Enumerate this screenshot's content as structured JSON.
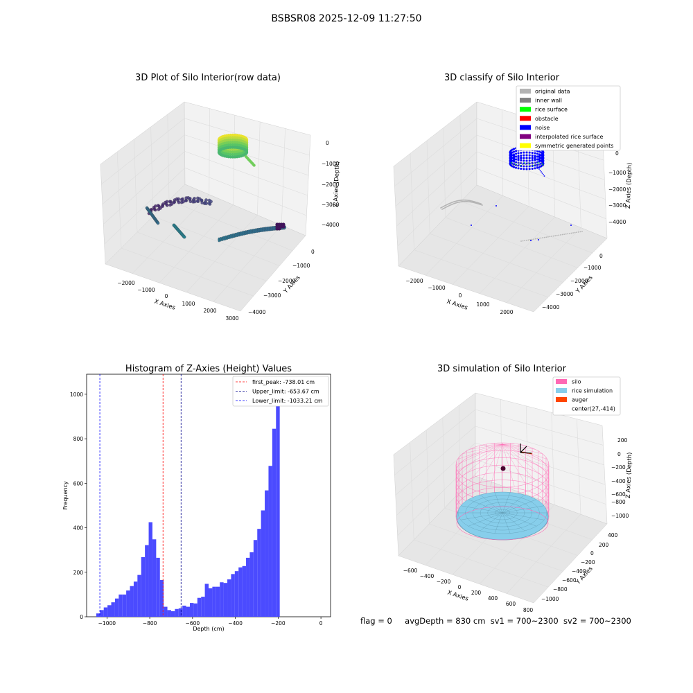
{
  "figure": {
    "suptitle": "BSBSR08 2025-12-09 11:27:50",
    "footer": {
      "flag": "flag = 0",
      "avg_depth": "avgDepth = 830 cm",
      "sv1": "sv1 = 700~2300",
      "sv2": "sv2 = 700~2300"
    }
  },
  "colors": {
    "original_data": "#b3b3b3",
    "inner_wall": "#808080",
    "rice_surface": "#00ff00",
    "obstacle": "#ff0000",
    "noise": "#0000ff",
    "interpolated": "#800080",
    "symmetric": "#ffff00",
    "silo": "#ff69b4",
    "rice_simulation": "#87ceeb",
    "auger": "#ff4500",
    "hist_bar": "#4b4bff",
    "first_peak_line": "#ff0000",
    "upper_limit_line": "#00008b",
    "lower_limit_line": "#0000ff"
  },
  "chart_data": [
    {
      "type": "scatter",
      "title": "3D Plot of Silo Interior(row data)",
      "xlabel": "X Axies",
      "ylabel": "Y Axies",
      "zlabel": "Z Axies (Depth)",
      "x_ticks": [
        "−2000",
        "−1000",
        "0",
        "1000",
        "2000",
        "3000"
      ],
      "y_ticks": [
        "0",
        "−1000",
        "−2000",
        "−3000",
        "−4000"
      ],
      "z_ticks": [
        "0",
        "−1000",
        "−2000",
        "−3000",
        "−4000"
      ],
      "colormap": "viridis"
    },
    {
      "type": "scatter",
      "title": "3D classify of Silo Interior",
      "xlabel": "X Axies",
      "ylabel": "Y Axies",
      "zlabel": "Z Axies (Depth)",
      "x_ticks": [
        "−2000",
        "−1000",
        "0",
        "1000",
        "2000"
      ],
      "y_ticks": [
        "0",
        "−1000",
        "−2000",
        "−3000",
        "−4000"
      ],
      "z_ticks": [
        "0",
        "−1000",
        "−2000",
        "−3000",
        "−4000"
      ],
      "legend": [
        "original data",
        "inner wall",
        "rice surface",
        "obstacle",
        "noise",
        "interpolated rice surface",
        "symmetric generated points"
      ],
      "legend_position": "top-right"
    },
    {
      "type": "bar",
      "title": "Histogram of Z-Axies (Height) Values",
      "xlabel": "Depth (cm)",
      "ylabel": "Frequency",
      "xlim": [
        -1095,
        45
      ],
      "ylim": [
        0,
        1090
      ],
      "x_ticks": [
        -1000,
        -800,
        -600,
        -400,
        -200,
        0
      ],
      "x_tick_labels": [
        "−1000",
        "−800",
        "−600",
        "−400",
        "−200",
        "0"
      ],
      "y_ticks": [
        0,
        200,
        400,
        600,
        800,
        1000
      ],
      "y_tick_labels": [
        "0",
        "200",
        "400",
        "600",
        "800",
        "1000"
      ],
      "bin_start": -1050,
      "bin_width": 17.5,
      "values": [
        15,
        30,
        42,
        52,
        65,
        82,
        100,
        100,
        118,
        138,
        158,
        188,
        268,
        322,
        425,
        348,
        265,
        165,
        45,
        30,
        25,
        35,
        38,
        50,
        45,
        62,
        60,
        85,
        90,
        148,
        128,
        135,
        135,
        155,
        152,
        168,
        192,
        205,
        222,
        228,
        265,
        290,
        345,
        395,
        478,
        568,
        678,
        845,
        1030
      ],
      "lines": [
        {
          "name": "first_peak: -738.01 cm",
          "x": -738.01,
          "color": "#ff0000"
        },
        {
          "name": "Upper_limit: -653.67 cm",
          "x": -653.67,
          "color": "#00008b"
        },
        {
          "name": "Lower_limit: -1033.21 cm",
          "x": -1033.21,
          "color": "#0000ff"
        }
      ],
      "legend_position": "top-right"
    },
    {
      "type": "scatter",
      "title": "3D simulation of Silo Interior",
      "xlabel": "X Axies",
      "ylabel": "Y Axies",
      "zlabel": "Z Axies (Depth)",
      "x_ticks": [
        "−600",
        "−400",
        "−200",
        "0",
        "200",
        "400",
        "600",
        "800"
      ],
      "y_ticks": [
        "400",
        "200",
        "0",
        "−200",
        "−400",
        "−600",
        "−800",
        "−1000"
      ],
      "z_ticks": [
        "200",
        "0",
        "−200",
        "−400",
        "−600",
        "−800",
        "−1000"
      ],
      "legend": [
        "silo",
        "rice simulation",
        "auger",
        "center(27,-414)"
      ],
      "legend_position": "top-right"
    }
  ]
}
